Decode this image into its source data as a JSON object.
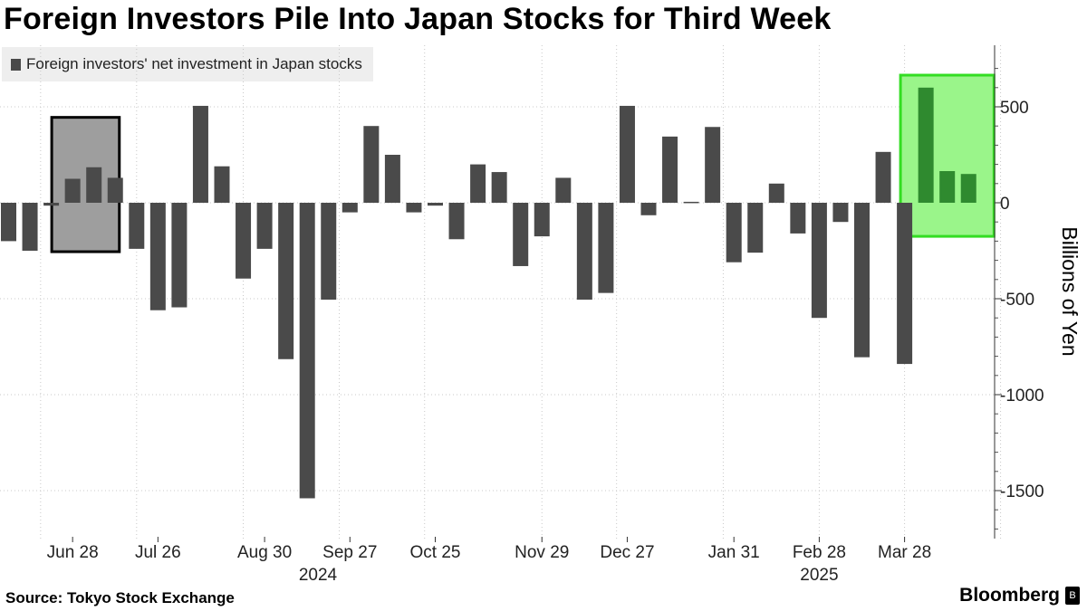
{
  "title": "Foreign Investors Pile Into Japan Stocks for Third Week",
  "footer": {
    "source": "Source: Tokyo Stock Exchange",
    "brand": "Bloomberg",
    "brand_mark": "B"
  },
  "colors": {
    "bar": "#4a4a4a",
    "bar_highlight": "#2f8a2f",
    "grey_box": "#9e9e9e",
    "green_box": "#9af58a",
    "green_border": "#33dd22",
    "grid": "#c8c8c8"
  },
  "chart_data": {
    "type": "bar",
    "title": "Foreign Investors Pile Into Japan Stocks for Third Week",
    "legend": [
      "Foreign investors' net investment in Japan stocks"
    ],
    "ylabel": "Billions of Yen",
    "ylim": [
      -1750,
      780
    ],
    "yticks": [
      500,
      0,
      -500,
      -1000,
      -1500
    ],
    "x_labels": [
      {
        "label": "Jun 28",
        "index": 3
      },
      {
        "label": "Jul 26",
        "index": 7
      },
      {
        "label": "Aug 30",
        "index": 12
      },
      {
        "label": "Sep 27",
        "index": 16
      },
      {
        "label": "Oct 25",
        "index": 20
      },
      {
        "label": "Nov 29",
        "index": 25
      },
      {
        "label": "Dec 27",
        "index": 29
      },
      {
        "label": "Jan 31",
        "index": 34
      },
      {
        "label": "Feb 28",
        "index": 38
      },
      {
        "label": "Mar 28",
        "index": 42
      }
    ],
    "year_labels": [
      {
        "label": "2024",
        "index": 14.5
      },
      {
        "label": "2025",
        "index": 38
      }
    ],
    "gridline_indices": [
      1.5,
      6,
      11,
      15.5,
      19.5,
      25,
      28.5,
      33.5,
      38,
      42,
      46.5
    ],
    "values": [
      -200,
      -250,
      -15,
      125,
      185,
      130,
      -240,
      -560,
      -545,
      505,
      190,
      -395,
      -240,
      -815,
      -1540,
      -505,
      -50,
      400,
      250,
      -50,
      -15,
      -190,
      200,
      160,
      -330,
      -175,
      130,
      -505,
      -470,
      505,
      -65,
      345,
      5,
      395,
      -310,
      -260,
      100,
      -160,
      -600,
      -100,
      -805,
      265,
      -840,
      600,
      165,
      150
    ],
    "highlight_indices": [
      43,
      44,
      45
    ],
    "annotations": [
      {
        "kind": "grey-box",
        "from_index": 2,
        "to_index": 5,
        "y_top": 445,
        "y_bottom": -255
      },
      {
        "kind": "green-box",
        "from_index": 42,
        "to_index": 46,
        "y_top": 665,
        "y_bottom": -175
      }
    ]
  }
}
